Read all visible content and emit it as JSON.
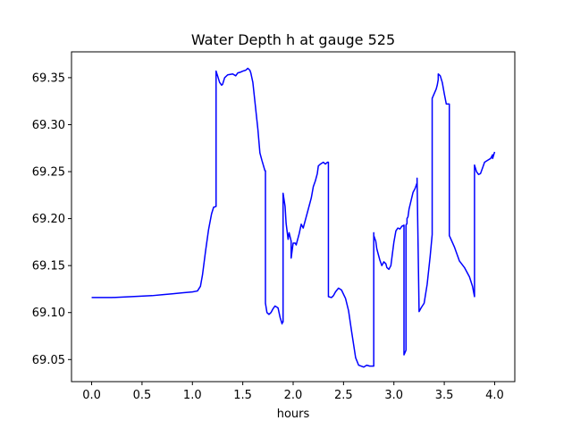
{
  "chart_data": {
    "type": "line",
    "title": "Water Depth h at gauge 525",
    "xlabel": "hours",
    "ylabel": "",
    "xlim": [
      -0.2,
      4.2
    ],
    "ylim": [
      69.0265,
      69.3775
    ],
    "xticks": [
      0.0,
      0.5,
      1.0,
      1.5,
      2.0,
      2.5,
      3.0,
      3.5,
      4.0
    ],
    "xtick_labels": [
      "0.0",
      "0.5",
      "1.0",
      "1.5",
      "2.0",
      "2.5",
      "3.0",
      "3.5",
      "4.0"
    ],
    "yticks": [
      69.05,
      69.1,
      69.15,
      69.2,
      69.25,
      69.3,
      69.35
    ],
    "ytick_labels": [
      "69.05",
      "69.10",
      "69.15",
      "69.20",
      "69.25",
      "69.30",
      "69.35"
    ],
    "grid": false,
    "series": [
      {
        "color": "#0000ff",
        "x": [
          0.0,
          0.2,
          0.4,
          0.6,
          0.7,
          0.8,
          0.9,
          1.0,
          1.05,
          1.08,
          1.1,
          1.13,
          1.16,
          1.19,
          1.21,
          1.235,
          1.235,
          1.25,
          1.27,
          1.29,
          1.3,
          1.32,
          1.35,
          1.4,
          1.43,
          1.45,
          1.48,
          1.5,
          1.53,
          1.55,
          1.57,
          1.58,
          1.6,
          1.62,
          1.65,
          1.67,
          1.69,
          1.72,
          1.725,
          1.725,
          1.74,
          1.76,
          1.78,
          1.8,
          1.82,
          1.85,
          1.87,
          1.89,
          1.895,
          1.9,
          1.9,
          1.92,
          1.93,
          1.95,
          1.96,
          1.98,
          1.98,
          2.0,
          2.02,
          2.03,
          2.04,
          2.06,
          2.08,
          2.1,
          2.12,
          2.14,
          2.16,
          2.18,
          2.2,
          2.22,
          2.24,
          2.25,
          2.27,
          2.3,
          2.32,
          2.34,
          2.35,
          2.35,
          2.38,
          2.4,
          2.42,
          2.45,
          2.48,
          2.52,
          2.55,
          2.58,
          2.6,
          2.62,
          2.65,
          2.7,
          2.73,
          2.76,
          2.8,
          2.8,
          2.8,
          2.82,
          2.83,
          2.85,
          2.86,
          2.88,
          2.9,
          2.92,
          2.93,
          2.95,
          2.97,
          3.0,
          3.02,
          3.04,
          3.06,
          3.08,
          3.1,
          3.1,
          3.12,
          3.12,
          3.13,
          3.13,
          3.14,
          3.15,
          3.17,
          3.19,
          3.21,
          3.23,
          3.23,
          3.25,
          3.27,
          3.3,
          3.33,
          3.36,
          3.38,
          3.38,
          3.4,
          3.42,
          3.43,
          3.44,
          3.44,
          3.46,
          3.48,
          3.5,
          3.52,
          3.55,
          3.55,
          3.6,
          3.65,
          3.7,
          3.75,
          3.78,
          3.8,
          3.8,
          3.82,
          3.84,
          3.86,
          3.88,
          3.9,
          3.93,
          3.96,
          3.98,
          3.98,
          4.0
        ],
        "y": [
          69.116,
          69.116,
          69.117,
          69.118,
          69.119,
          69.12,
          69.121,
          69.122,
          69.123,
          69.128,
          69.14,
          69.165,
          69.188,
          69.205,
          69.212,
          69.213,
          69.357,
          69.352,
          69.345,
          69.342,
          69.343,
          69.35,
          69.353,
          69.354,
          69.352,
          69.355,
          69.356,
          69.357,
          69.358,
          69.36,
          69.358,
          69.355,
          69.345,
          69.325,
          69.295,
          69.27,
          69.262,
          69.251,
          69.251,
          69.11,
          69.1,
          69.098,
          69.1,
          69.104,
          69.107,
          69.105,
          69.095,
          69.088,
          69.09,
          69.09,
          69.227,
          69.213,
          69.195,
          69.178,
          69.185,
          69.176,
          69.158,
          69.174,
          69.174,
          69.172,
          69.176,
          69.184,
          69.194,
          69.19,
          69.198,
          69.206,
          69.214,
          69.222,
          69.234,
          69.24,
          69.248,
          69.256,
          69.258,
          69.26,
          69.258,
          69.26,
          69.26,
          69.117,
          69.116,
          69.118,
          69.122,
          69.126,
          69.124,
          69.115,
          69.102,
          69.08,
          69.066,
          69.052,
          69.044,
          69.042,
          69.044,
          69.043,
          69.043,
          69.185,
          69.182,
          69.176,
          69.168,
          69.16,
          69.156,
          69.15,
          69.154,
          69.152,
          69.148,
          69.146,
          69.15,
          69.175,
          69.187,
          69.19,
          69.189,
          69.192,
          69.193,
          69.055,
          69.06,
          69.193,
          69.195,
          69.2,
          69.202,
          69.21,
          69.219,
          69.228,
          69.232,
          69.238,
          69.243,
          69.101,
          69.105,
          69.11,
          69.13,
          69.16,
          69.183,
          69.328,
          69.333,
          69.338,
          69.342,
          69.348,
          69.354,
          69.352,
          69.345,
          69.333,
          69.322,
          69.322,
          69.182,
          69.17,
          69.155,
          69.148,
          69.138,
          69.128,
          69.117,
          69.257,
          69.25,
          69.247,
          69.248,
          69.254,
          69.26,
          69.262,
          69.264,
          69.268,
          69.264,
          69.271
        ]
      }
    ]
  }
}
